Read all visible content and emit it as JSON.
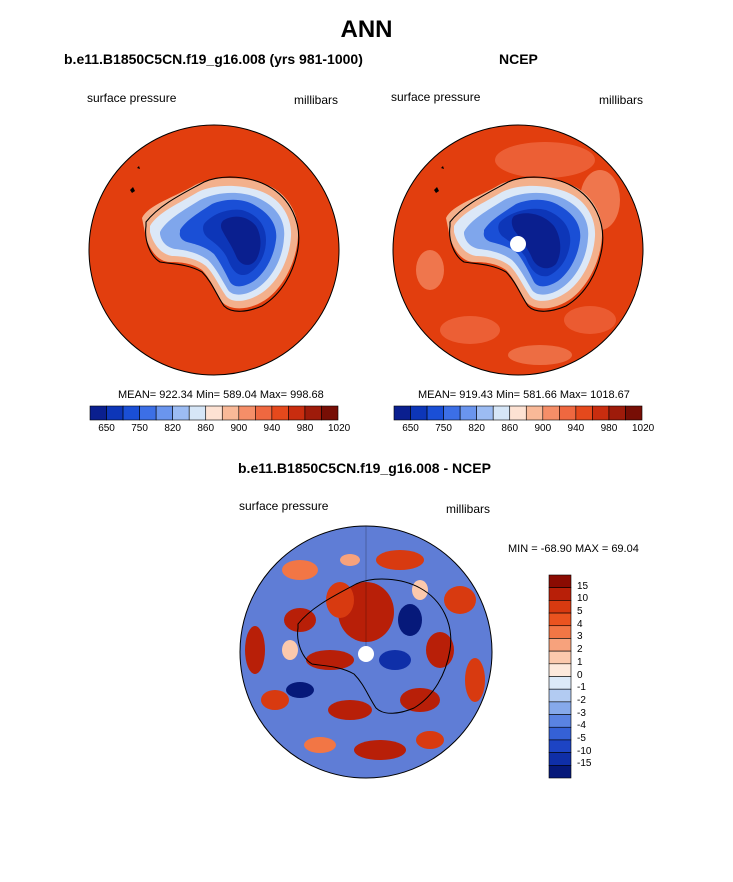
{
  "title": "ANN",
  "panels": [
    {
      "title": "b.e11.B1850C5CN.f19_g16.008 (yrs 981-1000)",
      "left_label": "surface pressure",
      "right_label": "millibars",
      "stats": "MEAN= 922.34  Min= 589.04  Max= 998.68"
    },
    {
      "title": "NCEP",
      "left_label": "surface pressure",
      "right_label": "millibars",
      "stats": "MEAN= 919.43  Min= 581.66  Max= 1018.67"
    },
    {
      "title": "b.e11.B1850C5CN.f19_g16.008 - NCEP",
      "left_label": "surface pressure",
      "right_label": "millibars",
      "stats": "MIN = -68.90 MAX =  69.04"
    }
  ],
  "abs_colorbar": {
    "colors": [
      "#0a1f8f",
      "#0d36b8",
      "#1a4fd6",
      "#3c6fe6",
      "#6a95ee",
      "#9cbcf3",
      "#d6e6f7",
      "#fde2d3",
      "#f9b998",
      "#f58e68",
      "#ef6840",
      "#e5491c",
      "#c92d0f",
      "#9e1b0a",
      "#770e05"
    ],
    "labels": [
      "650",
      "750",
      "820",
      "860",
      "900",
      "940",
      "980",
      "1020"
    ]
  },
  "diff_colorbar": {
    "colors": [
      "#8b0b02",
      "#b81f08",
      "#d83a10",
      "#ea531f",
      "#f27645",
      "#f7a27c",
      "#fbc9ad",
      "#fde9dc",
      "#dce9f8",
      "#b2cbf2",
      "#86a9ea",
      "#5a83e2",
      "#3561d6",
      "#1d44c4",
      "#0f2fa8",
      "#06197a"
    ],
    "labels": [
      "15",
      "10",
      "5",
      "4",
      "3",
      "2",
      "1",
      "0",
      "-1",
      "-2",
      "-3",
      "-4",
      "-5",
      "-10",
      "-15"
    ]
  },
  "colors": {
    "ocean_red": "#e23e0e",
    "ice_dark": "#0a1f8f",
    "ice_mid": "#1a4fd6",
    "diff_red": "#b81f08",
    "diff_blue": "#1d44c4"
  }
}
